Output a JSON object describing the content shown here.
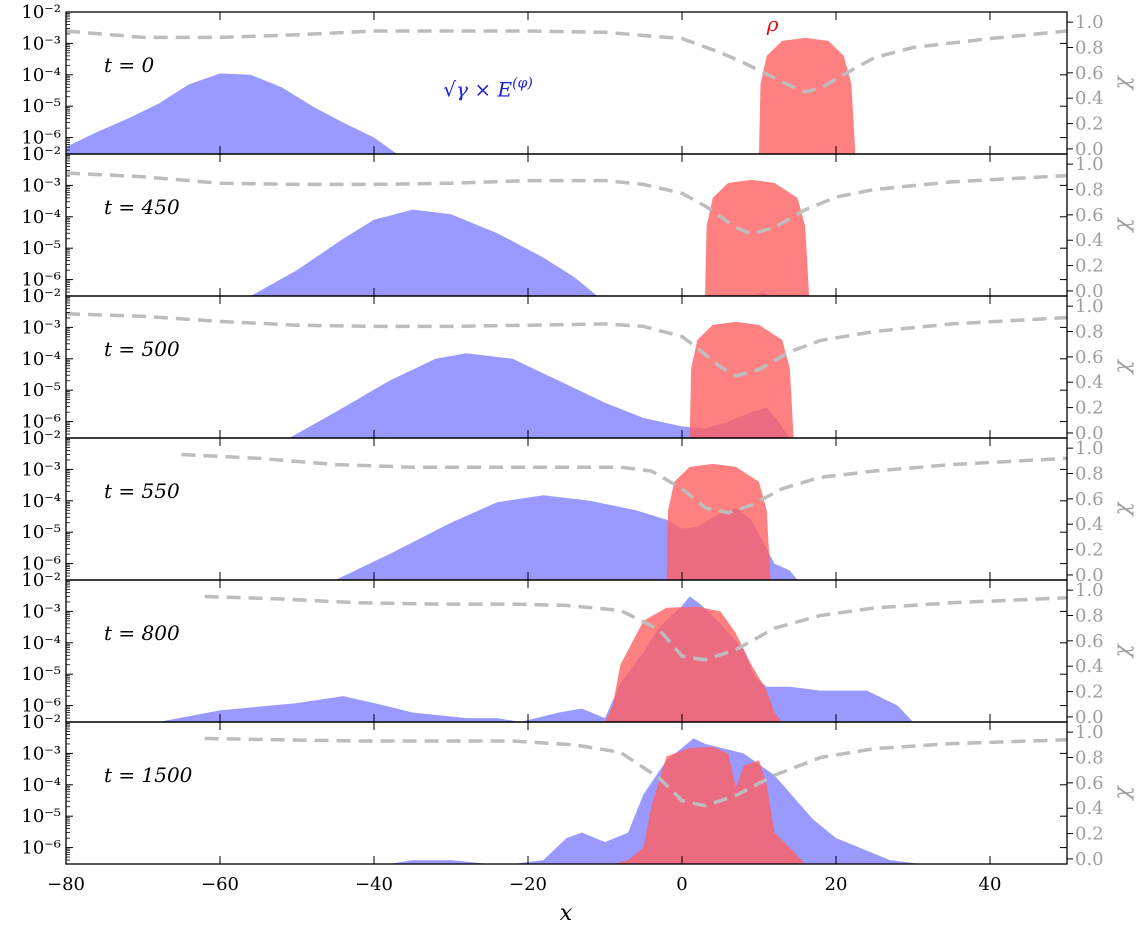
{
  "chart_data": {
    "type": "area",
    "layout": "stacked-panels-shared-x",
    "xlabel": "x",
    "xlim": [
      -80,
      50
    ],
    "x_ticks": [
      -80,
      -60,
      -40,
      -20,
      0,
      20,
      40
    ],
    "x_tick_labels": [
      "−80",
      "−60",
      "−40",
      "−20",
      "0",
      "20",
      "40"
    ],
    "left_axis": {
      "scale": "log",
      "ylim": [
        3e-07,
        0.01
      ],
      "ticks": [
        1e-06,
        1e-05,
        0.0001,
        0.001,
        0.01
      ],
      "tick_labels": [
        "10⁻⁶",
        "10⁻⁵",
        "10⁻⁴",
        "10⁻³",
        "10⁻²"
      ]
    },
    "right_axis": {
      "label": "χ",
      "ylim": [
        -0.04,
        1.08
      ],
      "ticks": [
        0.0,
        0.2,
        0.4,
        0.6,
        0.8,
        1.0
      ],
      "tick_labels": [
        "0.0",
        "0.2",
        "0.4",
        "0.6",
        "0.8",
        "1.0"
      ]
    },
    "annotations": {
      "field": {
        "text": "√γ × E",
        "superscript": "(φ)",
        "color": "#1a1ad6",
        "x": -31,
        "y": 2e-05,
        "panel": 0
      },
      "density": {
        "text": "ρ",
        "color": "#e01010",
        "x": 11,
        "y": 0.0025,
        "panel": 0
      }
    },
    "colors": {
      "field": "#8080ff",
      "density": "#ff6060",
      "chi": "#bdbdbd"
    },
    "series_info": [
      {
        "key": "field",
        "fill_color": "#8080ff",
        "opacity": 0.8
      },
      {
        "key": "density",
        "fill_color": "#ff6060",
        "opacity": 0.8
      },
      {
        "key": "chi",
        "line_style": "dashed",
        "axis": "right"
      }
    ],
    "panels": [
      {
        "label": "t = 0",
        "field": [
          [
            -80,
            5e-07
          ],
          [
            -76,
            1.5e-06
          ],
          [
            -72,
            4e-06
          ],
          [
            -68,
            1.2e-05
          ],
          [
            -64,
            5e-05
          ],
          [
            -60,
            0.00011
          ],
          [
            -56,
            0.0001
          ],
          [
            -52,
            4e-05
          ],
          [
            -48,
            1e-05
          ],
          [
            -44,
            3e-06
          ],
          [
            -40,
            1e-06
          ],
          [
            -37,
            3e-07
          ]
        ],
        "density": [
          [
            10,
            3e-07
          ],
          [
            10.2,
            5e-05
          ],
          [
            11,
            0.0004
          ],
          [
            13,
            0.0012
          ],
          [
            16,
            0.0015
          ],
          [
            19,
            0.0012
          ],
          [
            21,
            0.0004
          ],
          [
            22,
            5e-05
          ],
          [
            22.5,
            3e-07
          ]
        ],
        "chi": [
          [
            -80,
            0.93
          ],
          [
            -70,
            0.88
          ],
          [
            -60,
            0.88
          ],
          [
            -50,
            0.9
          ],
          [
            -40,
            0.93
          ],
          [
            -30,
            0.93
          ],
          [
            -20,
            0.93
          ],
          [
            -10,
            0.92
          ],
          [
            0,
            0.87
          ],
          [
            5,
            0.76
          ],
          [
            8,
            0.68
          ],
          [
            10,
            0.62
          ],
          [
            14,
            0.5
          ],
          [
            16,
            0.45
          ],
          [
            18,
            0.48
          ],
          [
            22,
            0.62
          ],
          [
            25,
            0.72
          ],
          [
            30,
            0.8
          ],
          [
            40,
            0.87
          ],
          [
            50,
            0.93
          ]
        ]
      },
      {
        "label": "t = 450",
        "field": [
          [
            -56,
            3e-07
          ],
          [
            -50,
            2e-06
          ],
          [
            -44,
            2e-05
          ],
          [
            -40,
            8e-05
          ],
          [
            -35,
            0.00017
          ],
          [
            -30,
            0.00012
          ],
          [
            -24,
            3e-05
          ],
          [
            -18,
            5e-06
          ],
          [
            -14,
            1.2e-06
          ],
          [
            -11,
            3e-07
          ],
          [
            9,
            3e-07
          ],
          [
            10.5,
            4e-07
          ],
          [
            11.5,
            3e-07
          ]
        ],
        "density": [
          [
            3,
            3e-07
          ],
          [
            3.2,
            5e-05
          ],
          [
            4,
            0.0004
          ],
          [
            6,
            0.0012
          ],
          [
            9,
            0.0015
          ],
          [
            12,
            0.0012
          ],
          [
            15,
            0.0004
          ],
          [
            16,
            5e-05
          ],
          [
            16.5,
            3e-07
          ]
        ],
        "chi": [
          [
            -80,
            0.93
          ],
          [
            -70,
            0.9
          ],
          [
            -60,
            0.85
          ],
          [
            -50,
            0.84
          ],
          [
            -40,
            0.84
          ],
          [
            -30,
            0.85
          ],
          [
            -20,
            0.87
          ],
          [
            -10,
            0.87
          ],
          [
            -5,
            0.84
          ],
          [
            0,
            0.77
          ],
          [
            3,
            0.67
          ],
          [
            7,
            0.5
          ],
          [
            9,
            0.45
          ],
          [
            12,
            0.5
          ],
          [
            16,
            0.64
          ],
          [
            20,
            0.74
          ],
          [
            25,
            0.8
          ],
          [
            35,
            0.86
          ],
          [
            50,
            0.91
          ]
        ]
      },
      {
        "label": "t = 500",
        "field": [
          [
            -51,
            3e-07
          ],
          [
            -45,
            2e-06
          ],
          [
            -38,
            2e-05
          ],
          [
            -32,
            0.0001
          ],
          [
            -28,
            0.00015
          ],
          [
            -22,
            0.0001
          ],
          [
            -16,
            2e-05
          ],
          [
            -10,
            4e-06
          ],
          [
            -5,
            1.3e-06
          ],
          [
            0,
            7e-07
          ],
          [
            3,
            6e-07
          ],
          [
            6,
            1e-06
          ],
          [
            9,
            2e-06
          ],
          [
            11,
            2.8e-06
          ],
          [
            12.5,
            1e-06
          ],
          [
            14,
            3e-07
          ]
        ],
        "density": [
          [
            1,
            3e-07
          ],
          [
            1.2,
            5e-05
          ],
          [
            2,
            0.0004
          ],
          [
            4,
            0.0012
          ],
          [
            7,
            0.0015
          ],
          [
            10,
            0.0012
          ],
          [
            13,
            0.0004
          ],
          [
            14,
            5e-05
          ],
          [
            14.5,
            3e-07
          ]
        ],
        "chi": [
          [
            -80,
            0.94
          ],
          [
            -70,
            0.92
          ],
          [
            -60,
            0.88
          ],
          [
            -50,
            0.85
          ],
          [
            -40,
            0.84
          ],
          [
            -30,
            0.84
          ],
          [
            -20,
            0.85
          ],
          [
            -10,
            0.86
          ],
          [
            -5,
            0.84
          ],
          [
            0,
            0.76
          ],
          [
            2,
            0.67
          ],
          [
            5,
            0.52
          ],
          [
            7,
            0.45
          ],
          [
            10,
            0.5
          ],
          [
            14,
            0.64
          ],
          [
            18,
            0.73
          ],
          [
            25,
            0.8
          ],
          [
            35,
            0.86
          ],
          [
            50,
            0.91
          ]
        ]
      },
      {
        "label": "t = 550",
        "field": [
          [
            -45,
            3e-07
          ],
          [
            -38,
            2e-06
          ],
          [
            -30,
            2e-05
          ],
          [
            -24,
            9e-05
          ],
          [
            -18,
            0.00015
          ],
          [
            -12,
            0.0001
          ],
          [
            -6,
            5e-05
          ],
          [
            -2,
            2.5e-05
          ],
          [
            0,
            1.3e-05
          ],
          [
            2,
            1.5e-05
          ],
          [
            5,
            4e-05
          ],
          [
            7,
            6e-05
          ],
          [
            9,
            2.5e-05
          ],
          [
            11,
            3e-06
          ],
          [
            12,
            1e-06
          ],
          [
            14,
            6e-07
          ],
          [
            15,
            3e-07
          ]
        ],
        "density": [
          [
            -2,
            3e-07
          ],
          [
            -1.8,
            5e-05
          ],
          [
            -1,
            0.0004
          ],
          [
            1,
            0.0012
          ],
          [
            4,
            0.0015
          ],
          [
            7,
            0.0012
          ],
          [
            10,
            0.0004
          ],
          [
            11,
            5e-05
          ],
          [
            11.5,
            3e-07
          ]
        ],
        "chi": [
          [
            -65,
            0.95
          ],
          [
            -55,
            0.92
          ],
          [
            -45,
            0.87
          ],
          [
            -35,
            0.85
          ],
          [
            -25,
            0.85
          ],
          [
            -15,
            0.85
          ],
          [
            -8,
            0.85
          ],
          [
            -4,
            0.82
          ],
          [
            0,
            0.68
          ],
          [
            3,
            0.53
          ],
          [
            6,
            0.49
          ],
          [
            9,
            0.55
          ],
          [
            13,
            0.68
          ],
          [
            18,
            0.77
          ],
          [
            25,
            0.82
          ],
          [
            35,
            0.87
          ],
          [
            50,
            0.92
          ]
        ]
      },
      {
        "label": "t = 800",
        "field": [
          [
            -68,
            3e-07
          ],
          [
            -60,
            7e-07
          ],
          [
            -50,
            1.2e-06
          ],
          [
            -44,
            2e-06
          ],
          [
            -40,
            1.2e-06
          ],
          [
            -35,
            6e-07
          ],
          [
            -28,
            4e-07
          ],
          [
            -24,
            4e-07
          ],
          [
            -21,
            3e-07
          ],
          [
            -16,
            6e-07
          ],
          [
            -13,
            8e-07
          ],
          [
            -10,
            4e-07
          ],
          [
            -8,
            5e-06
          ],
          [
            -5,
            5e-05
          ],
          [
            -3,
            0.0003
          ],
          [
            0,
            0.0015
          ],
          [
            1,
            0.003
          ],
          [
            2.5,
            0.0016
          ],
          [
            5,
            0.0004
          ],
          [
            8,
            6e-05
          ],
          [
            9.5,
            8e-06
          ],
          [
            11,
            4e-06
          ],
          [
            14,
            4e-06
          ],
          [
            18,
            3e-06
          ],
          [
            24,
            3e-06
          ],
          [
            28,
            1e-06
          ],
          [
            30,
            3e-07
          ]
        ],
        "density": [
          [
            -10,
            3e-07
          ],
          [
            -9,
            1e-06
          ],
          [
            -8,
            2e-05
          ],
          [
            -5,
            0.0005
          ],
          [
            -2,
            0.0013
          ],
          [
            2,
            0.0014
          ],
          [
            5,
            0.001
          ],
          [
            7,
            0.0002
          ],
          [
            9,
            2e-05
          ],
          [
            11,
            3e-06
          ],
          [
            12,
            6e-07
          ],
          [
            13,
            3e-07
          ]
        ],
        "chi": [
          [
            -62,
            0.95
          ],
          [
            -52,
            0.93
          ],
          [
            -42,
            0.9
          ],
          [
            -32,
            0.89
          ],
          [
            -22,
            0.89
          ],
          [
            -15,
            0.88
          ],
          [
            -8,
            0.84
          ],
          [
            -3,
            0.69
          ],
          [
            0,
            0.48
          ],
          [
            3,
            0.45
          ],
          [
            7,
            0.53
          ],
          [
            12,
            0.7
          ],
          [
            18,
            0.8
          ],
          [
            25,
            0.86
          ],
          [
            35,
            0.9
          ],
          [
            50,
            0.94
          ]
        ]
      },
      {
        "label": "t = 1500",
        "field": [
          [
            -38,
            3e-07
          ],
          [
            -35,
            4e-07
          ],
          [
            -30,
            4e-07
          ],
          [
            -25,
            3e-07
          ],
          [
            -22,
            3e-07
          ],
          [
            -18,
            4e-07
          ],
          [
            -15,
            2e-06
          ],
          [
            -13,
            3e-06
          ],
          [
            -10,
            1.5e-06
          ],
          [
            -7,
            3e-06
          ],
          [
            -5,
            5e-05
          ],
          [
            -2,
            0.0006
          ],
          [
            0,
            0.0015
          ],
          [
            1.5,
            0.003
          ],
          [
            3,
            0.002
          ],
          [
            8,
            0.001
          ],
          [
            12,
            0.0002
          ],
          [
            17,
            8e-06
          ],
          [
            20,
            2e-06
          ],
          [
            24,
            8e-07
          ],
          [
            27,
            4e-07
          ],
          [
            31,
            3e-07
          ]
        ],
        "density": [
          [
            -9,
            3e-07
          ],
          [
            -7,
            4e-07
          ],
          [
            -5,
            1e-06
          ],
          [
            -4,
            2e-05
          ],
          [
            -2,
            0.0008
          ],
          [
            1,
            0.0015
          ],
          [
            4,
            0.0016
          ],
          [
            6,
            0.001
          ],
          [
            7,
            8e-05
          ],
          [
            8,
            0.0004
          ],
          [
            10,
            0.0006
          ],
          [
            11,
            0.0001
          ],
          [
            12,
            3e-06
          ],
          [
            14,
            1e-06
          ],
          [
            16,
            3e-07
          ]
        ],
        "chi": [
          [
            -62,
            0.95
          ],
          [
            -52,
            0.94
          ],
          [
            -42,
            0.93
          ],
          [
            -32,
            0.93
          ],
          [
            -22,
            0.93
          ],
          [
            -14,
            0.9
          ],
          [
            -8,
            0.84
          ],
          [
            -3,
            0.64
          ],
          [
            0,
            0.46
          ],
          [
            3,
            0.42
          ],
          [
            7,
            0.5
          ],
          [
            12,
            0.66
          ],
          [
            18,
            0.8
          ],
          [
            25,
            0.87
          ],
          [
            35,
            0.91
          ],
          [
            50,
            0.94
          ]
        ]
      }
    ]
  }
}
